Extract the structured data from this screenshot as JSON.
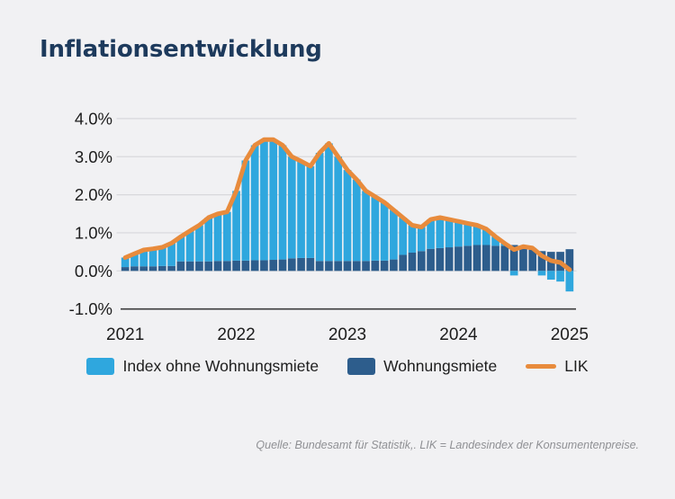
{
  "page": {
    "title": "Inflationsentwicklung",
    "source_note": "Quelle: Bundesamt für Statistik,. LIK = Landesindex der Konsumentenpreise."
  },
  "colors": {
    "background": "#f1f1f3",
    "title_navy": "#1d3a5c",
    "bar_light_blue": "#2fa7de",
    "bar_dark_blue": "#2d5d8c",
    "line_orange": "#e88b3c",
    "gridline": "#d8d8dc",
    "axis_line_dark": "#3c3c3c",
    "axis_text": "#1c1c1c",
    "source_text": "#8f9094"
  },
  "legend": {
    "items": [
      {
        "label": "Index ohne Wohnungsmiete",
        "color": "#2fa7de",
        "shape": "square"
      },
      {
        "label": "Wohnungsmiete",
        "color": "#2d5d8c",
        "shape": "square"
      },
      {
        "label": "LIK",
        "color": "#e88b3c",
        "shape": "line"
      }
    ]
  },
  "chart_data": {
    "type": "bar",
    "subtype": "stacked-monthly-bars-with-line",
    "title": "Inflationsentwicklung",
    "xlabel": "",
    "ylabel": "",
    "ylim": [
      -1.0,
      4.0
    ],
    "grid": "horizontal",
    "legend_position": "bottom",
    "y_ticks": [
      {
        "label": "4.0%",
        "value": 4.0
      },
      {
        "label": "3.0%",
        "value": 3.0
      },
      {
        "label": "2.0%",
        "value": 2.0
      },
      {
        "label": "1.0%",
        "value": 1.0
      },
      {
        "label": "0.0%",
        "value": 0.0
      },
      {
        "label": "-1.0%",
        "value": -1.0
      }
    ],
    "x_ticks": [
      {
        "label": "2021",
        "month_index": 0
      },
      {
        "label": "2022",
        "month_index": 12
      },
      {
        "label": "2023",
        "month_index": 24
      },
      {
        "label": "2024",
        "month_index": 36
      },
      {
        "label": "2025",
        "month_index": 48
      }
    ],
    "months": [
      "2021-01",
      "2021-02",
      "2021-03",
      "2021-04",
      "2021-05",
      "2021-06",
      "2021-07",
      "2021-08",
      "2021-09",
      "2021-10",
      "2021-11",
      "2021-12",
      "2022-01",
      "2022-02",
      "2022-03",
      "2022-04",
      "2022-05",
      "2022-06",
      "2022-07",
      "2022-08",
      "2022-09",
      "2022-10",
      "2022-11",
      "2022-12",
      "2023-01",
      "2023-02",
      "2023-03",
      "2023-04",
      "2023-05",
      "2023-06",
      "2023-07",
      "2023-08",
      "2023-09",
      "2023-10",
      "2023-11",
      "2023-12",
      "2024-01",
      "2024-02",
      "2024-03",
      "2024-04",
      "2024-05",
      "2024-06",
      "2024-07",
      "2024-08",
      "2024-09",
      "2024-10",
      "2024-11",
      "2024-12",
      "2025-01"
    ],
    "series": [
      {
        "name": "Index ohne Wohnungsmiete",
        "role": "stacked-bar",
        "color": "#2fa7de",
        "values": [
          0.25,
          0.33,
          0.43,
          0.46,
          0.49,
          0.6,
          0.65,
          0.8,
          0.95,
          1.15,
          1.24,
          1.29,
          1.83,
          2.63,
          3.02,
          3.17,
          3.16,
          3.0,
          2.67,
          2.54,
          2.41,
          2.84,
          3.09,
          2.74,
          2.39,
          2.14,
          1.84,
          1.68,
          1.53,
          1.3,
          0.98,
          0.72,
          0.63,
          0.77,
          0.8,
          0.73,
          0.66,
          0.59,
          0.52,
          0.42,
          0.24,
          0.06,
          -0.12,
          0.04,
          0.04,
          -0.12,
          -0.23,
          -0.28,
          -0.54
        ]
      },
      {
        "name": "Wohnungsmiete",
        "role": "stacked-bar",
        "color": "#2d5d8c",
        "values": [
          0.1,
          0.12,
          0.12,
          0.12,
          0.13,
          0.13,
          0.25,
          0.25,
          0.25,
          0.25,
          0.26,
          0.26,
          0.27,
          0.27,
          0.28,
          0.28,
          0.29,
          0.3,
          0.33,
          0.34,
          0.34,
          0.26,
          0.26,
          0.26,
          0.26,
          0.26,
          0.26,
          0.27,
          0.27,
          0.3,
          0.42,
          0.48,
          0.52,
          0.58,
          0.6,
          0.62,
          0.64,
          0.66,
          0.68,
          0.68,
          0.66,
          0.66,
          0.68,
          0.6,
          0.56,
          0.52,
          0.5,
          0.5,
          0.57
        ]
      },
      {
        "name": "LIK",
        "role": "line",
        "color": "#e88b3c",
        "values": [
          0.35,
          0.45,
          0.55,
          0.58,
          0.62,
          0.73,
          0.9,
          1.05,
          1.2,
          1.4,
          1.5,
          1.55,
          2.1,
          2.9,
          3.3,
          3.45,
          3.45,
          3.3,
          3.0,
          2.88,
          2.75,
          3.1,
          3.35,
          3.0,
          2.65,
          2.4,
          2.1,
          1.95,
          1.8,
          1.6,
          1.4,
          1.2,
          1.15,
          1.35,
          1.4,
          1.35,
          1.3,
          1.25,
          1.2,
          1.1,
          0.9,
          0.72,
          0.56,
          0.64,
          0.6,
          0.4,
          0.27,
          0.22,
          0.03
        ]
      }
    ]
  }
}
